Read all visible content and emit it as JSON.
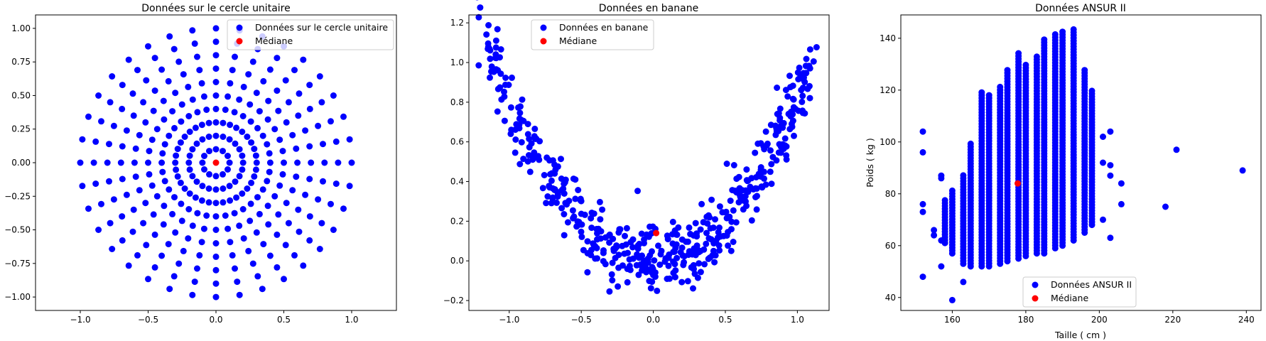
{
  "chart_data": [
    {
      "type": "scatter",
      "title": "Données sur le cercle unitaire",
      "xlabel": "",
      "ylabel": "",
      "xlim": [
        -1.33,
        1.33
      ],
      "ylim": [
        -1.1,
        1.1
      ],
      "xticks": [
        -1.0,
        -0.5,
        0.0,
        0.5,
        1.0
      ],
      "xtick_labels": [
        "−1.0",
        "−0.5",
        "0.0",
        "0.5",
        "1.0"
      ],
      "yticks": [
        -1.0,
        -0.75,
        -0.5,
        -0.25,
        0.0,
        0.25,
        0.5,
        0.75,
        1.0
      ],
      "ytick_labels": [
        "−1.00",
        "−0.75",
        "−0.50",
        "−0.25",
        "0.00",
        "0.25",
        "0.50",
        "0.75",
        "1.00"
      ],
      "legend_position": "top-right",
      "series": [
        {
          "name": "Données sur le cercle unitaire",
          "color": "#0000ff",
          "generator": "concentric-rings",
          "rings": [
            {
              "r": 0.1,
              "n": 12
            },
            {
              "r": 0.2,
              "n": 24
            },
            {
              "r": 0.3,
              "n": 36
            },
            {
              "r": 0.4,
              "n": 36
            },
            {
              "r": 0.5,
              "n": 36
            },
            {
              "r": 0.6,
              "n": 36
            },
            {
              "r": 0.7,
              "n": 36
            },
            {
              "r": 0.8,
              "n": 36
            },
            {
              "r": 0.9,
              "n": 36
            },
            {
              "r": 1.0,
              "n": 36
            }
          ]
        },
        {
          "name": "Médiane",
          "color": "#ff0000",
          "points": [
            [
              0.0,
              0.0
            ]
          ]
        }
      ]
    },
    {
      "type": "scatter",
      "title": "Données en banane",
      "xlabel": "",
      "ylabel": "",
      "xlim": [
        -1.28,
        1.22
      ],
      "ylim": [
        -0.25,
        1.24
      ],
      "xticks": [
        -1.0,
        -0.5,
        0.0,
        0.5,
        1.0
      ],
      "xtick_labels": [
        "−1.0",
        "−0.5",
        "0.0",
        "0.5",
        "1.0"
      ],
      "yticks": [
        -0.2,
        0.0,
        0.2,
        0.4,
        0.6,
        0.8,
        1.0,
        1.2
      ],
      "ytick_labels": [
        "−0.2",
        "0.0",
        "0.2",
        "0.4",
        "0.6",
        "0.8",
        "1.0",
        "1.2"
      ],
      "legend_position": "top-left",
      "series": [
        {
          "name": "Données en banane",
          "color": "#0000ff",
          "generator": "parabola-band",
          "n": 500,
          "x_range": [
            -1.18,
            1.1
          ],
          "noise": 0.09
        },
        {
          "name": "Médiane",
          "color": "#ff0000",
          "points": [
            [
              0.02,
              0.14
            ]
          ]
        }
      ]
    },
    {
      "type": "scatter",
      "title": "Données ANSUR II",
      "xlabel": "Taille ( cm )",
      "ylabel": "Poids ( kg )",
      "xlim": [
        146,
        244
      ],
      "ylim": [
        35,
        149
      ],
      "xticks": [
        160,
        180,
        200,
        220,
        240
      ],
      "xtick_labels": [
        "160",
        "180",
        "200",
        "220",
        "240"
      ],
      "yticks": [
        40,
        60,
        80,
        100,
        120,
        140
      ],
      "ytick_labels": [
        "40",
        "60",
        "80",
        "100",
        "120",
        "140"
      ],
      "legend_position": "bottom-center",
      "series": [
        {
          "name": "Données ANSUR II",
          "color": "#0000ff",
          "generator": "height-columns",
          "columns": [
            [
              158,
              61,
              78
            ],
            [
              160,
              57,
              82
            ],
            [
              163,
              53,
              88
            ],
            [
              165,
              52,
              100
            ],
            [
              168,
              52,
              120
            ],
            [
              170,
              52,
              119
            ],
            [
              173,
              53,
              122
            ],
            [
              175,
              54,
              128
            ],
            [
              178,
              55,
              135
            ],
            [
              180,
              56,
              130
            ],
            [
              183,
              57,
              133
            ],
            [
              185,
              57,
              140
            ],
            [
              188,
              59,
              142
            ],
            [
              190,
              60,
              143
            ],
            [
              193,
              62,
              144
            ],
            [
              196,
              65,
              128
            ],
            [
              198,
              68,
              120
            ]
          ],
          "outliers": [
            [
              152,
              104
            ],
            [
              152,
              96
            ],
            [
              152,
              76
            ],
            [
              152,
              73
            ],
            [
              152,
              48
            ],
            [
              155,
              66
            ],
            [
              155,
              64
            ],
            [
              157,
              87
            ],
            [
              157,
              86
            ],
            [
              157,
              62
            ],
            [
              157,
              52
            ],
            [
              160,
              39
            ],
            [
              163,
              46
            ],
            [
              201,
              102
            ],
            [
              201,
              70
            ],
            [
              201,
              92
            ],
            [
              203,
              104
            ],
            [
              203,
              91
            ],
            [
              203,
              87
            ],
            [
              203,
              63
            ],
            [
              206,
              84
            ],
            [
              206,
              76
            ],
            [
              218,
              75
            ],
            [
              221,
              97
            ],
            [
              239,
              89
            ]
          ]
        },
        {
          "name": "Médiane",
          "color": "#ff0000",
          "points": [
            [
              177.8,
              84.0
            ]
          ]
        }
      ]
    }
  ]
}
